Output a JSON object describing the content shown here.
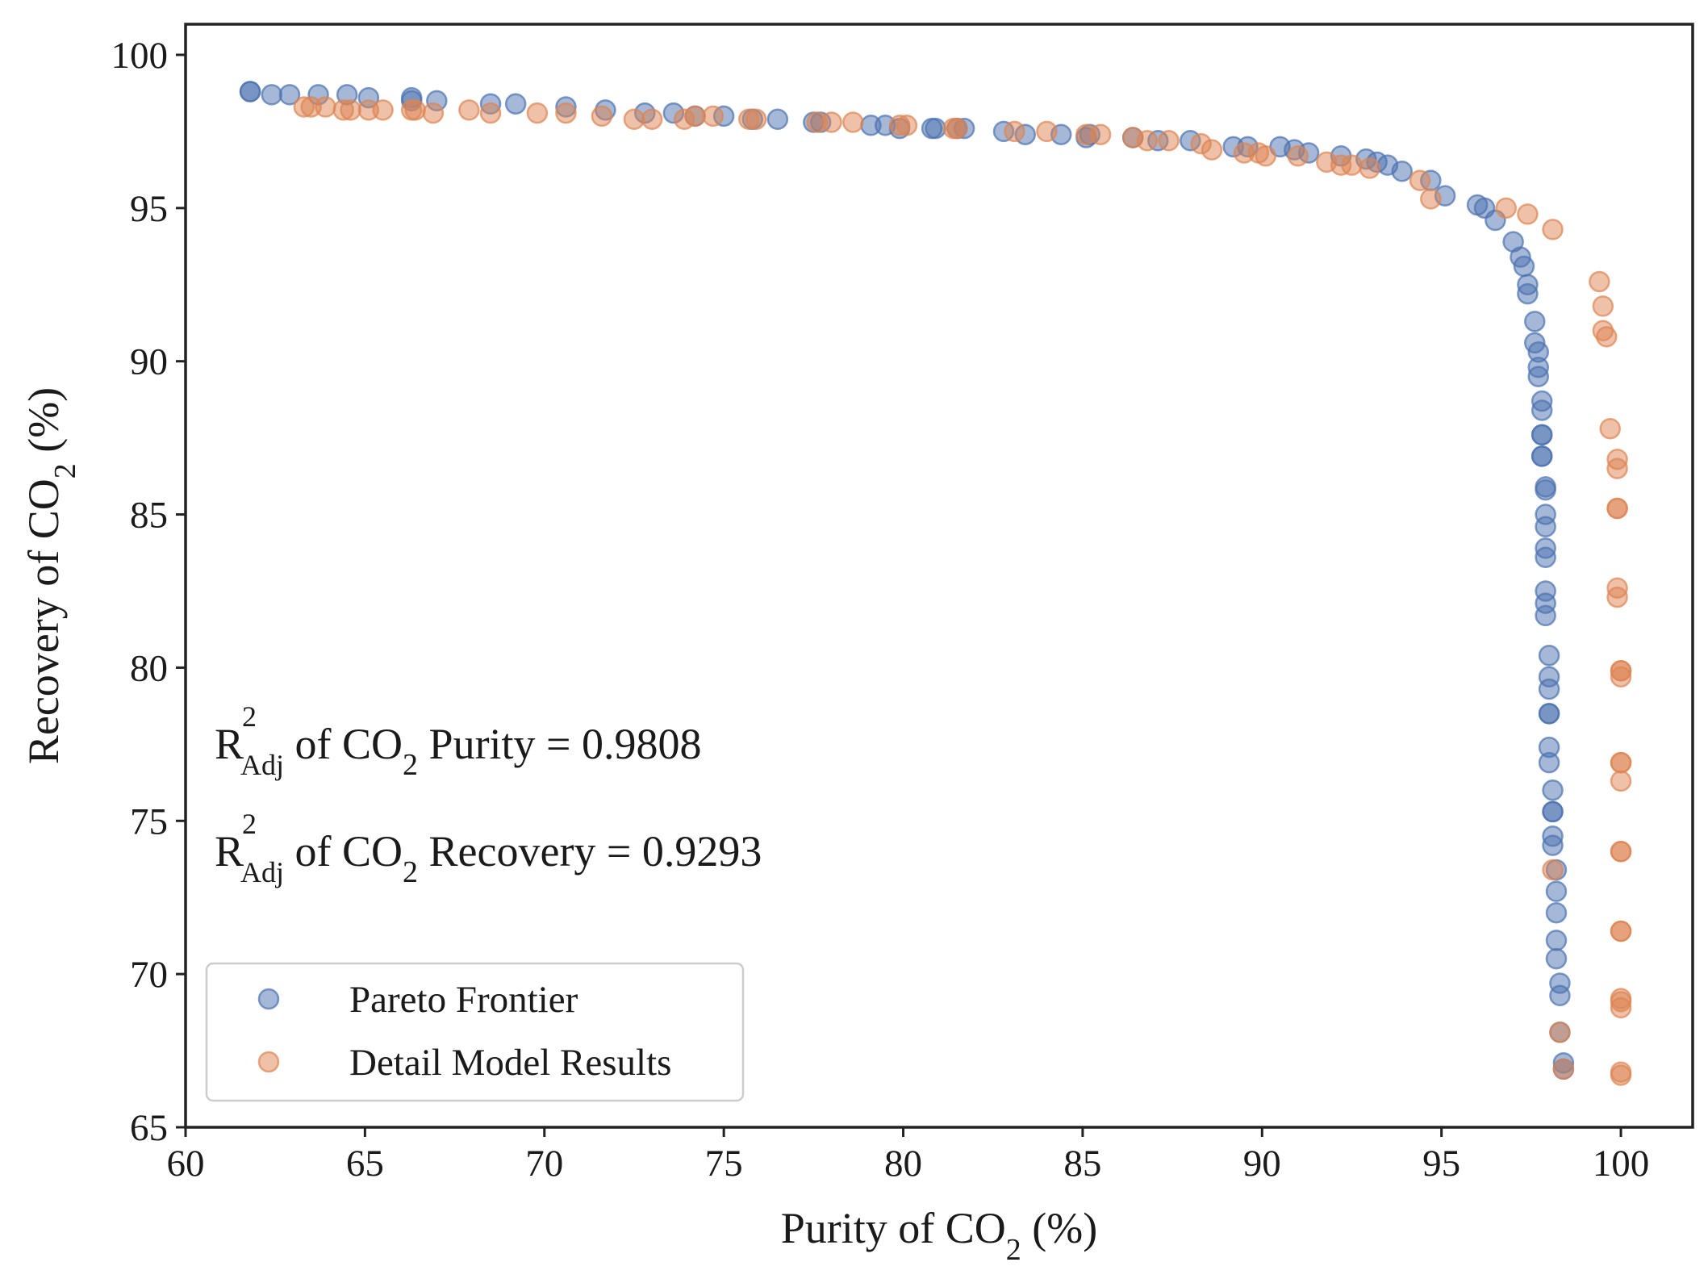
{
  "chart_data": {
    "type": "scatter",
    "xlabel": {
      "text": "Purity of CO",
      "sub": "2",
      "after": " (%)"
    },
    "ylabel": {
      "text": "Recovery of CO",
      "sub": "2",
      "after": " (%)"
    },
    "xlim": [
      60,
      102
    ],
    "ylim": [
      65,
      101
    ],
    "x_ticks": [
      60,
      65,
      70,
      75,
      80,
      85,
      90,
      95,
      100
    ],
    "y_ticks": [
      65,
      70,
      75,
      80,
      85,
      90,
      95,
      100
    ],
    "grid": false,
    "legend_position": "bottom-left",
    "annotations": [
      {
        "r": "R",
        "sup": "2",
        "sub": "Adj",
        "mid": " of CO",
        "mid_sub": "2",
        "rest": " Purity = 0.9808"
      },
      {
        "r": "R",
        "sup": "2",
        "sub": "Adj",
        "mid": " of CO",
        "mid_sub": "2",
        "rest": " Recovery = 0.9293"
      }
    ],
    "series": [
      {
        "name": "Pareto Frontier",
        "color": "#4c72b0",
        "points": [
          [
            61.8,
            98.8
          ],
          [
            61.8,
            98.8
          ],
          [
            62.4,
            98.7
          ],
          [
            62.9,
            98.7
          ],
          [
            63.7,
            98.7
          ],
          [
            64.5,
            98.7
          ],
          [
            65.1,
            98.6
          ],
          [
            66.3,
            98.6
          ],
          [
            66.3,
            98.5
          ],
          [
            67.0,
            98.5
          ],
          [
            68.5,
            98.4
          ],
          [
            69.2,
            98.4
          ],
          [
            70.6,
            98.3
          ],
          [
            71.7,
            98.2
          ],
          [
            72.8,
            98.1
          ],
          [
            73.6,
            98.1
          ],
          [
            74.2,
            98.0
          ],
          [
            75.0,
            98.0
          ],
          [
            75.8,
            97.9
          ],
          [
            76.5,
            97.9
          ],
          [
            77.5,
            97.8
          ],
          [
            77.7,
            97.8
          ],
          [
            79.1,
            97.7
          ],
          [
            79.5,
            97.7
          ],
          [
            79.9,
            97.6
          ],
          [
            80.8,
            97.6
          ],
          [
            80.9,
            97.6
          ],
          [
            81.5,
            97.6
          ],
          [
            81.7,
            97.6
          ],
          [
            82.8,
            97.5
          ],
          [
            83.4,
            97.4
          ],
          [
            84.4,
            97.4
          ],
          [
            85.1,
            97.3
          ],
          [
            85.2,
            97.4
          ],
          [
            86.4,
            97.3
          ],
          [
            87.1,
            97.2
          ],
          [
            88.0,
            97.2
          ],
          [
            89.2,
            97.0
          ],
          [
            89.6,
            97.0
          ],
          [
            90.5,
            97.0
          ],
          [
            90.9,
            96.9
          ],
          [
            91.3,
            96.8
          ],
          [
            92.2,
            96.7
          ],
          [
            92.9,
            96.6
          ],
          [
            93.2,
            96.5
          ],
          [
            93.5,
            96.4
          ],
          [
            93.9,
            96.2
          ],
          [
            94.7,
            95.9
          ],
          [
            95.1,
            95.4
          ],
          [
            96.0,
            95.1
          ],
          [
            96.2,
            95.0
          ],
          [
            96.5,
            94.6
          ],
          [
            97.0,
            93.9
          ],
          [
            97.2,
            93.4
          ],
          [
            97.3,
            93.1
          ],
          [
            97.4,
            92.5
          ],
          [
            97.4,
            92.2
          ],
          [
            97.6,
            91.3
          ],
          [
            97.6,
            90.6
          ],
          [
            97.7,
            90.3
          ],
          [
            97.7,
            89.8
          ],
          [
            97.7,
            89.5
          ],
          [
            97.8,
            88.7
          ],
          [
            97.8,
            88.4
          ],
          [
            97.8,
            87.6
          ],
          [
            97.8,
            87.6
          ],
          [
            97.8,
            86.9
          ],
          [
            97.8,
            86.9
          ],
          [
            97.9,
            85.9
          ],
          [
            97.9,
            85.8
          ],
          [
            97.9,
            85.0
          ],
          [
            97.9,
            84.6
          ],
          [
            97.9,
            83.9
          ],
          [
            97.9,
            83.6
          ],
          [
            97.9,
            82.5
          ],
          [
            97.9,
            82.1
          ],
          [
            97.9,
            81.7
          ],
          [
            98.0,
            80.4
          ],
          [
            98.0,
            79.7
          ],
          [
            98.0,
            79.3
          ],
          [
            98.0,
            78.5
          ],
          [
            98.0,
            78.5
          ],
          [
            98.0,
            77.4
          ],
          [
            98.0,
            76.9
          ],
          [
            98.1,
            76.0
          ],
          [
            98.1,
            75.3
          ],
          [
            98.1,
            75.3
          ],
          [
            98.1,
            74.5
          ],
          [
            98.1,
            74.2
          ],
          [
            98.2,
            73.4
          ],
          [
            98.2,
            72.7
          ],
          [
            98.2,
            72.0
          ],
          [
            98.2,
            71.1
          ],
          [
            98.2,
            70.5
          ],
          [
            98.3,
            69.7
          ],
          [
            98.3,
            69.3
          ],
          [
            98.3,
            68.1
          ],
          [
            98.4,
            67.1
          ],
          [
            98.4,
            66.9
          ]
        ]
      },
      {
        "name": "Detail Model Results",
        "color": "#dd8452",
        "points": [
          [
            63.3,
            98.3
          ],
          [
            63.5,
            98.3
          ],
          [
            63.9,
            98.3
          ],
          [
            64.4,
            98.2
          ],
          [
            64.6,
            98.2
          ],
          [
            65.1,
            98.2
          ],
          [
            65.5,
            98.2
          ],
          [
            66.4,
            98.2
          ],
          [
            66.3,
            98.2
          ],
          [
            66.9,
            98.1
          ],
          [
            67.9,
            98.2
          ],
          [
            68.5,
            98.1
          ],
          [
            69.8,
            98.1
          ],
          [
            70.6,
            98.1
          ],
          [
            71.6,
            98.0
          ],
          [
            72.5,
            97.9
          ],
          [
            73.0,
            97.9
          ],
          [
            73.9,
            97.9
          ],
          [
            74.2,
            98.0
          ],
          [
            74.7,
            98.0
          ],
          [
            75.7,
            97.9
          ],
          [
            75.9,
            97.9
          ],
          [
            77.6,
            97.8
          ],
          [
            78.0,
            97.8
          ],
          [
            78.6,
            97.8
          ],
          [
            79.9,
            97.7
          ],
          [
            80.1,
            97.7
          ],
          [
            81.4,
            97.6
          ],
          [
            81.5,
            97.6
          ],
          [
            83.1,
            97.5
          ],
          [
            84.0,
            97.5
          ],
          [
            85.1,
            97.4
          ],
          [
            85.5,
            97.4
          ],
          [
            86.4,
            97.3
          ],
          [
            86.8,
            97.2
          ],
          [
            87.4,
            97.2
          ],
          [
            88.3,
            97.1
          ],
          [
            88.6,
            96.9
          ],
          [
            89.5,
            96.8
          ],
          [
            89.9,
            96.8
          ],
          [
            90.1,
            96.7
          ],
          [
            91.0,
            96.7
          ],
          [
            91.8,
            96.5
          ],
          [
            92.2,
            96.4
          ],
          [
            92.5,
            96.4
          ],
          [
            93.0,
            96.3
          ],
          [
            94.4,
            95.9
          ],
          [
            94.7,
            95.3
          ],
          [
            96.8,
            95.0
          ],
          [
            97.4,
            94.8
          ],
          [
            98.1,
            94.3
          ],
          [
            99.4,
            92.6
          ],
          [
            99.5,
            91.8
          ],
          [
            99.5,
            91.0
          ],
          [
            99.6,
            90.8
          ],
          [
            99.7,
            87.8
          ],
          [
            99.9,
            86.8
          ],
          [
            99.9,
            86.5
          ],
          [
            99.9,
            85.2
          ],
          [
            99.9,
            85.2
          ],
          [
            99.9,
            82.6
          ],
          [
            99.9,
            82.3
          ],
          [
            100.0,
            79.9
          ],
          [
            100.0,
            79.7
          ],
          [
            100.0,
            79.9
          ],
          [
            100.0,
            76.9
          ],
          [
            100.0,
            76.9
          ],
          [
            100.0,
            76.3
          ],
          [
            100.0,
            74.0
          ],
          [
            100.0,
            74.0
          ],
          [
            98.1,
            73.4
          ],
          [
            100.0,
            71.4
          ],
          [
            100.0,
            71.4
          ],
          [
            100.0,
            69.1
          ],
          [
            100.0,
            68.9
          ],
          [
            100.0,
            69.2
          ],
          [
            98.3,
            68.1
          ],
          [
            100.0,
            66.8
          ],
          [
            100.0,
            66.7
          ],
          [
            98.4,
            66.9
          ]
        ]
      }
    ]
  }
}
